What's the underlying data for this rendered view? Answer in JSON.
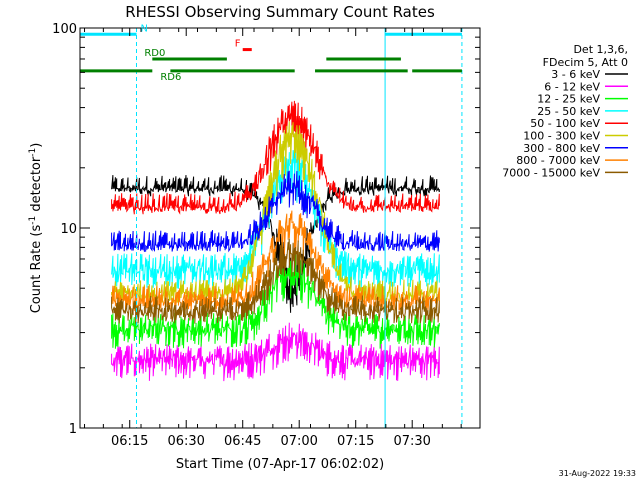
{
  "chart_data": {
    "type": "line",
    "title": "RHESSI Observing Summary Count Rates",
    "xlabel": "Start Time (07-Apr-17 06:02:02)",
    "ylabel": "Count Rate (s",
    "ylabel_sup": "-1",
    "ylabel_tail": " detector",
    "ylabel_sup2": "-1",
    "ylabel_close": ")",
    "yscale": "log",
    "ylim": [
      1,
      100
    ],
    "xlim_minutes": [
      6.03,
      7.8
    ],
    "yticks": [
      {
        "value": 1,
        "label": "1"
      },
      {
        "value": 10,
        "label": "10"
      },
      {
        "value": 100,
        "label": "100"
      }
    ],
    "xticks": [
      {
        "value": 6.25,
        "label": "06:15"
      },
      {
        "value": 6.5,
        "label": "06:30"
      },
      {
        "value": 6.75,
        "label": "06:45"
      },
      {
        "value": 7.0,
        "label": "07:00"
      },
      {
        "value": 7.25,
        "label": "07:15"
      },
      {
        "value": 7.5,
        "label": "07:30"
      }
    ],
    "legend_header": [
      "Det 1,3,6,",
      "FDecim 5, Att 0"
    ],
    "series": [
      {
        "name": "3 - 6 keV",
        "color": "#000000",
        "base": 16.0,
        "peak": 4.0,
        "floor": 14.0
      },
      {
        "name": "6 - 12 keV",
        "color": "#ff00ff",
        "base": 2.3,
        "peak": 3.0,
        "floor": 1.0
      },
      {
        "name": "12 - 25 keV",
        "color": "#00ff00",
        "base": 3.3,
        "peak": 6.5,
        "floor": 1.5
      },
      {
        "name": "25 - 50 keV",
        "color": "#00ffff",
        "base": 6.5,
        "peak": 22.0,
        "floor": 3.0
      },
      {
        "name": "50 - 100 keV",
        "color": "#ff0000",
        "base": 13.0,
        "peak": 38.0,
        "floor": 11.0
      },
      {
        "name": "100 - 300 keV",
        "color": "#cccc00",
        "base": 4.8,
        "peak": 30.0,
        "floor": 3.5
      },
      {
        "name": "300 - 800 keV",
        "color": "#0000ff",
        "base": 8.5,
        "peak": 17.0,
        "floor": 6.5
      },
      {
        "name": "800 - 7000 keV",
        "color": "#ff8000",
        "base": 4.5,
        "peak": 11.0,
        "floor": 3.0
      },
      {
        "name": "7000 - 15000 keV",
        "color": "#8b5a00",
        "base": 4.0,
        "peak": 8.0,
        "floor": 2.5
      }
    ],
    "data_span_minutes": [
      6.17,
      7.62
    ],
    "flare_peak_minutes": 6.97,
    "annotations": [
      {
        "label": "N",
        "color": "#00e5ff",
        "segments": [
          [
            6.03,
            6.28
          ],
          [
            7.38,
            7.72
          ]
        ],
        "level": 93
      },
      {
        "label": "F",
        "color": "#ff0000",
        "segments": [
          [
            6.75,
            6.79
          ]
        ],
        "level": 78
      },
      {
        "label": "RD0",
        "color": "#008000",
        "segments": [
          [
            6.35,
            6.68
          ],
          [
            7.12,
            7.45
          ]
        ],
        "level": 70
      },
      {
        "label": "RD6",
        "color": "#008000",
        "segments": [
          [
            6.03,
            6.35
          ],
          [
            6.43,
            6.98
          ],
          [
            7.07,
            7.48
          ],
          [
            7.5,
            7.72
          ]
        ],
        "level": 61
      }
    ],
    "vlines": [
      {
        "color": "#00e5ff",
        "x": 6.03,
        "style": "solid"
      },
      {
        "color": "#00e5ff",
        "x": 6.28,
        "style": "dashed"
      },
      {
        "color": "#00e5ff",
        "x": 7.38,
        "style": "solid"
      },
      {
        "color": "#00e5ff",
        "x": 7.72,
        "style": "dashed"
      }
    ]
  },
  "footer": {
    "timestamp": "31-Aug-2022 19:33"
  }
}
